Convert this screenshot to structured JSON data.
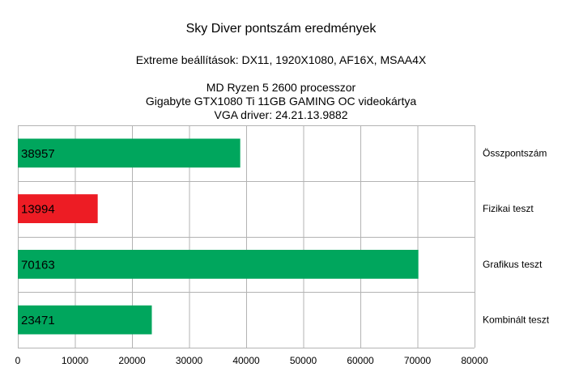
{
  "chart_data": {
    "type": "bar",
    "orientation": "horizontal",
    "title": "Sky Diver pontszám eredmények",
    "subtitle_lines": [
      "Extreme beállítások: DX11, 1920X1080, AF16X, MSAA4X",
      "MD Ryzen 5 2600 processzor",
      "Gigabyte GTX1080 Ti 11GB GAMING OC videokártya",
      "VGA driver: 24.21.13.9882"
    ],
    "categories": [
      "Összpontszám",
      "Fizikai teszt",
      "Grafikus teszt",
      "Kombinált teszt"
    ],
    "values": [
      38957,
      13994,
      70163,
      23471
    ],
    "bar_colors": [
      "#00a65d",
      "#ed1c24",
      "#00a65d",
      "#00a65d"
    ],
    "xlim": [
      0,
      80000
    ],
    "xticks": [
      0,
      10000,
      20000,
      30000,
      40000,
      50000,
      60000,
      70000,
      80000
    ],
    "grid": true,
    "category_labels_side": "right",
    "data_labels": true
  }
}
